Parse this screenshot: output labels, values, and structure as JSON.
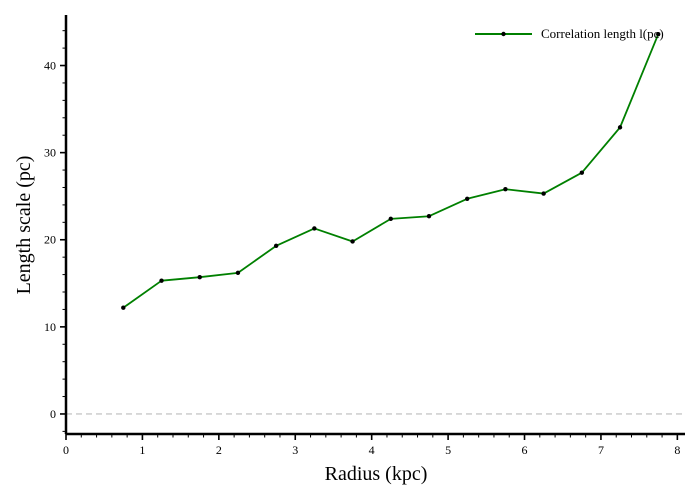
{
  "chart_data": {
    "type": "line",
    "xlabel": "Radius (kpc)",
    "ylabel": "Length scale (pc)",
    "xlim": [
      0,
      8.1
    ],
    "ylim": [
      -2.3,
      45.8
    ],
    "x_ticks": [
      0,
      1,
      2,
      3,
      4,
      5,
      6,
      7,
      8
    ],
    "y_ticks": [
      0,
      10,
      20,
      30,
      40
    ],
    "x_minor_step": 0.2,
    "y_minor_step": 2,
    "grid": false,
    "legend_position": "top-right",
    "reference_line": {
      "y": 0,
      "style": "dashed",
      "color": "#c8c8c8"
    },
    "series": [
      {
        "name": "Correlation length l(pc)",
        "color": "#008000",
        "marker_color": "#000000",
        "x": [
          0.75,
          1.25,
          1.75,
          2.25,
          2.75,
          3.25,
          3.75,
          4.25,
          4.75,
          5.25,
          5.75,
          6.25,
          6.75,
          7.25,
          7.75
        ],
        "y": [
          12.2,
          15.3,
          15.7,
          16.2,
          19.3,
          21.3,
          19.8,
          22.4,
          22.7,
          24.7,
          25.8,
          25.3,
          27.7,
          32.9,
          43.6
        ]
      }
    ]
  }
}
